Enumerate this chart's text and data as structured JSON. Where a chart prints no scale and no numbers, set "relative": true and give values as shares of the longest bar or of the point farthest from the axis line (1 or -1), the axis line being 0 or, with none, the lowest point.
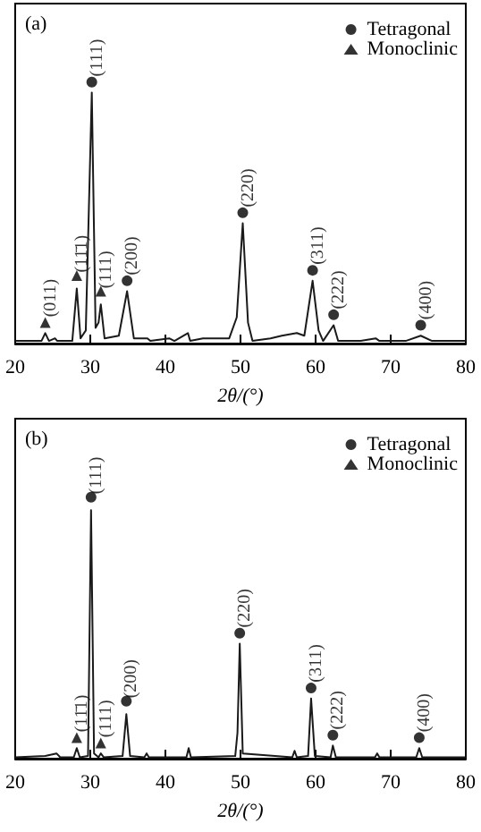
{
  "chart_data": [
    {
      "type": "line",
      "xlabel": "2θ/(°)",
      "xlim": [
        20,
        80
      ],
      "xticks": [
        20,
        30,
        40,
        50,
        60,
        70,
        80
      ],
      "relative": true,
      "legend": "top right",
      "annotations": [
        "(a)",
        {
          "text": "(011)",
          "x": 24,
          "y": 0.04
        },
        {
          "text": "(11̄1)",
          "x": 28.2,
          "y": 0.21
        },
        {
          "text": "(111)",
          "x": 30.2,
          "y": 0.96
        },
        {
          "text": "(111)",
          "x": 31.4,
          "y": 0.15
        },
        {
          "text": "(200)",
          "x": 34.9,
          "y": 0.2
        },
        {
          "text": "(220)",
          "x": 50.3,
          "y": 0.46
        },
        {
          "text": "(311)",
          "x": 59.6,
          "y": 0.24
        },
        {
          "text": "(222)",
          "x": 62.4,
          "y": 0.07
        },
        {
          "text": "(400)",
          "x": 74,
          "y": 0.03
        }
      ],
      "series": [
        {
          "color": "#1a1a1a",
          "x": [
            20,
            23.5,
            24,
            24.5,
            25.3,
            25.6,
            27.6,
            28.2,
            28.7,
            29.4,
            30.2,
            30.7,
            31.1,
            31.4,
            31.9,
            33.8,
            34.9,
            35.8,
            37.6,
            38,
            40.5,
            41.2,
            43,
            43.3,
            45,
            48.5,
            49.5,
            50.3,
            51,
            51.6,
            54,
            55.5,
            57.5,
            58.5,
            59.6,
            60.4,
            61,
            62.4,
            63,
            66,
            68,
            68.5,
            72,
            74,
            75.5,
            80
          ],
          "values": [
            0.01,
            0.01,
            0.04,
            0.01,
            0.02,
            0.01,
            0.01,
            0.21,
            0.02,
            0.05,
            0.96,
            0.06,
            0.08,
            0.15,
            0.02,
            0.03,
            0.2,
            0.02,
            0.02,
            0.01,
            0.02,
            0.01,
            0.04,
            0.01,
            0.02,
            0.02,
            0.1,
            0.46,
            0.08,
            0.01,
            0.02,
            0.03,
            0.04,
            0.03,
            0.24,
            0.05,
            0.01,
            0.07,
            0.01,
            0.01,
            0.02,
            0.01,
            0.01,
            0.03,
            0.01,
            0.01
          ]
        },
        {
          "type": "scatter",
          "name": "Tetragonal",
          "color": "#000000",
          "marker": "circle",
          "x": [
            30.2,
            34.9,
            50.3,
            59.6,
            62.4,
            74
          ],
          "values": [
            1.0,
            0.24,
            0.5,
            0.28,
            0.11,
            0.07
          ]
        },
        {
          "type": "scatter",
          "name": "Monoclinic",
          "color": "#000000",
          "marker": "triangle",
          "x": [
            24,
            28.2,
            31.4
          ],
          "values": [
            0.08,
            0.26,
            0.2
          ]
        }
      ]
    },
    {
      "type": "line",
      "xlabel": "2θ/(°)",
      "xlim": [
        20,
        80
      ],
      "xticks": [
        20,
        30,
        40,
        50,
        60,
        70,
        80
      ],
      "relative": true,
      "legend": "top right",
      "annotations": [
        "(b)",
        {
          "text": "(11̄1)",
          "x": 28.2,
          "y": 0.04
        },
        {
          "text": "(111)",
          "x": 30.1,
          "y": 0.95
        },
        {
          "text": "(111)",
          "x": 31.4,
          "y": 0.02
        },
        {
          "text": "(200)",
          "x": 34.8,
          "y": 0.17
        },
        {
          "text": "(220)",
          "x": 49.9,
          "y": 0.44
        },
        {
          "text": "(311)",
          "x": 59.4,
          "y": 0.23
        },
        {
          "text": "(222)",
          "x": 62.3,
          "y": 0.05
        },
        {
          "text": "(400)",
          "x": 73.8,
          "y": 0.04
        }
      ],
      "series": [
        {
          "color": "#1a1a1a",
          "x": [
            20,
            24,
            25.5,
            26,
            27.8,
            28.2,
            28.6,
            29.7,
            30.1,
            30.5,
            31.1,
            31.4,
            31.8,
            34.3,
            34.8,
            35.3,
            37.2,
            37.5,
            37.8,
            42.8,
            43.1,
            43.4,
            49.3,
            49.6,
            49.9,
            50.3,
            56.9,
            57.2,
            57.5,
            59,
            59.4,
            59.9,
            62,
            62.3,
            62.7,
            67.9,
            68.2,
            68.5,
            73.4,
            73.8,
            74.2,
            80
          ],
          "values": [
            0.005,
            0.01,
            0.02,
            0.005,
            0.005,
            0.04,
            0.005,
            0.01,
            0.95,
            0.02,
            0.005,
            0.02,
            0.005,
            0.01,
            0.17,
            0.01,
            0.005,
            0.02,
            0.005,
            0.005,
            0.04,
            0.005,
            0.01,
            0.1,
            0.44,
            0.02,
            0.005,
            0.03,
            0.005,
            0.01,
            0.23,
            0.01,
            0.005,
            0.05,
            0.005,
            0.005,
            0.02,
            0.005,
            0.005,
            0.04,
            0.005,
            0.005
          ]
        },
        {
          "type": "scatter",
          "name": "Tetragonal",
          "color": "#000000",
          "marker": "circle",
          "x": [
            30.1,
            34.8,
            49.9,
            59.4,
            62.3,
            73.8
          ],
          "values": [
            1.0,
            0.22,
            0.48,
            0.27,
            0.09,
            0.08
          ]
        },
        {
          "type": "scatter",
          "name": "Monoclinic",
          "color": "#000000",
          "marker": "triangle",
          "x": [
            28.2,
            31.4
          ],
          "values": [
            0.08,
            0.06
          ]
        }
      ]
    }
  ]
}
